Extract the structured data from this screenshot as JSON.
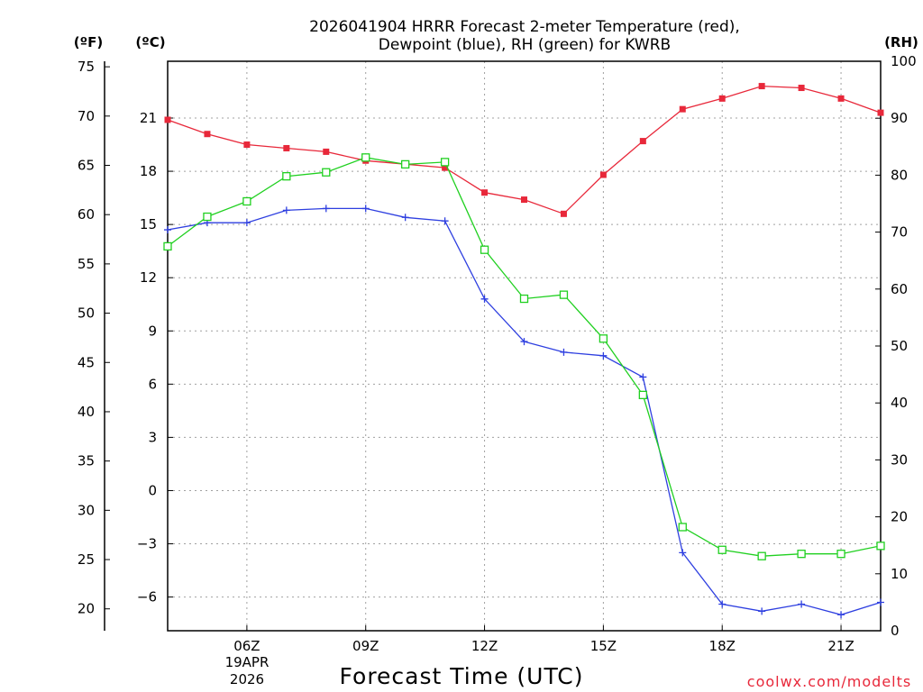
{
  "chart_data": {
    "type": "line",
    "title_line1": "2026041904 HRRR Forecast 2-meter Temperature (red),",
    "title_line2": "Dewpoint (blue), RH (green) for KWRB",
    "xlabel": "Forecast Time (UTC)",
    "credit": "coolwx.com/modelts",
    "date_line1": "19APR",
    "date_line2": "2026",
    "units": {
      "fahrenheit": "(ºF)",
      "celsius": "(ºC)",
      "rh": "(RH)"
    },
    "x_hours": [
      4,
      5,
      6,
      7,
      8,
      9,
      10,
      11,
      12,
      13,
      14,
      15,
      16,
      17,
      18,
      19,
      20,
      21,
      22
    ],
    "x_ticks": [
      {
        "hour": 6,
        "label": "06Z"
      },
      {
        "hour": 9,
        "label": "09Z"
      },
      {
        "hour": 12,
        "label": "12Z"
      },
      {
        "hour": 15,
        "label": "15Z"
      },
      {
        "hour": 18,
        "label": "18Z"
      },
      {
        "hour": 21,
        "label": "21Z"
      }
    ],
    "xlim": [
      4,
      22
    ],
    "celsius_axis": {
      "ylim": [
        -7.9,
        24.2
      ],
      "ticks": [
        "21",
        "18",
        "15",
        "12",
        "9",
        "6",
        "3",
        "0",
        "−3",
        "−6"
      ],
      "tick_values": [
        21,
        18,
        15,
        12,
        9,
        6,
        3,
        0,
        -3,
        -6
      ]
    },
    "fahrenheit_axis": {
      "ylim": [
        17.78,
        75.56
      ],
      "ticks": [
        "75",
        "70",
        "65",
        "60",
        "55",
        "50",
        "45",
        "40",
        "35",
        "30",
        "25",
        "20"
      ],
      "tick_values": [
        75,
        70,
        65,
        60,
        55,
        50,
        45,
        40,
        35,
        30,
        25,
        20
      ]
    },
    "rh_axis": {
      "ylim": [
        0,
        100
      ],
      "ticks": [
        "100",
        "90",
        "80",
        "70",
        "60",
        "50",
        "40",
        "30",
        "20",
        "10",
        "0"
      ],
      "tick_values": [
        100,
        90,
        80,
        70,
        60,
        50,
        40,
        30,
        20,
        10,
        0
      ]
    },
    "series": [
      {
        "name": "Temperature",
        "axis": "celsius",
        "color": "#e8283a",
        "marker": "filled-square",
        "values": [
          20.9,
          20.1,
          19.5,
          19.3,
          19.1,
          18.6,
          18.4,
          18.2,
          16.8,
          16.4,
          15.6,
          17.8,
          19.7,
          21.5,
          22.1,
          22.8,
          22.7,
          22.1,
          21.3
        ]
      },
      {
        "name": "Dewpoint",
        "axis": "celsius",
        "color": "#2e3fe0",
        "marker": "plus",
        "values": [
          14.7,
          15.1,
          15.1,
          15.8,
          15.9,
          15.9,
          15.4,
          15.2,
          10.8,
          8.4,
          7.8,
          7.6,
          6.4,
          -3.5,
          -6.4,
          -6.8,
          -6.4,
          -7.0,
          -6.3
        ]
      },
      {
        "name": "RH",
        "axis": "rh",
        "color": "#20d020",
        "marker": "open-square",
        "values": [
          67.5,
          72.7,
          75.4,
          79.8,
          80.5,
          83.1,
          81.9,
          82.3,
          66.9,
          58.3,
          59.0,
          51.3,
          41.4,
          18.2,
          14.2,
          13.1,
          13.5,
          13.5,
          14.9
        ]
      }
    ]
  }
}
